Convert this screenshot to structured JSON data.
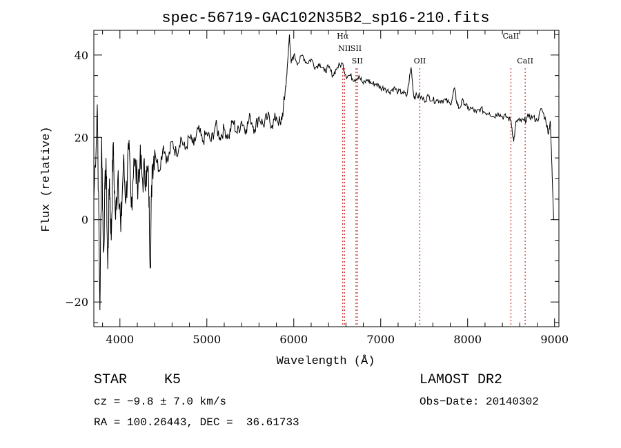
{
  "chart_data": {
    "type": "line",
    "title": "spec-56719-GAC102N35B2_sp16-210.fits",
    "xlabel": "Wavelength (Å)",
    "ylabel": "Flux (relative)",
    "xlim": [
      3700,
      9050
    ],
    "ylim": [
      -26,
      46
    ],
    "xticks": [
      4000,
      5000,
      6000,
      7000,
      8000,
      9000
    ],
    "yticks": [
      -20,
      0,
      20,
      40
    ],
    "grid": false,
    "series": [
      {
        "color": "#000000",
        "points": [
          [
            3700,
            5
          ],
          [
            3740,
            28
          ],
          [
            3770,
            -22
          ],
          [
            3790,
            20
          ],
          [
            3810,
            -8
          ],
          [
            3840,
            15
          ],
          [
            3860,
            -12
          ],
          [
            3880,
            10
          ],
          [
            3900,
            -5
          ],
          [
            3920,
            18
          ],
          [
            3950,
            0
          ],
          [
            3980,
            12
          ],
          [
            4010,
            -3
          ],
          [
            4040,
            14
          ],
          [
            4070,
            5
          ],
          [
            4100,
            17
          ],
          [
            4130,
            3
          ],
          [
            4160,
            15
          ],
          [
            4200,
            9
          ],
          [
            4230,
            14
          ],
          [
            4260,
            10
          ],
          [
            4300,
            12
          ],
          [
            4330,
            9
          ],
          [
            4350,
            -11
          ],
          [
            4370,
            13
          ],
          [
            4400,
            17
          ],
          [
            4450,
            12
          ],
          [
            4500,
            18
          ],
          [
            4550,
            14
          ],
          [
            4600,
            19
          ],
          [
            4650,
            16
          ],
          [
            4700,
            20
          ],
          [
            4750,
            17
          ],
          [
            4800,
            20
          ],
          [
            4850,
            18
          ],
          [
            4900,
            22
          ],
          [
            4950,
            19
          ],
          [
            5000,
            21
          ],
          [
            5050,
            19
          ],
          [
            5100,
            23
          ],
          [
            5150,
            20
          ],
          [
            5200,
            22
          ],
          [
            5250,
            20
          ],
          [
            5300,
            24
          ],
          [
            5350,
            21
          ],
          [
            5400,
            24
          ],
          [
            5450,
            22
          ],
          [
            5500,
            25
          ],
          [
            5550,
            22
          ],
          [
            5600,
            25
          ],
          [
            5650,
            23
          ],
          [
            5700,
            25
          ],
          [
            5750,
            23
          ],
          [
            5800,
            25
          ],
          [
            5850,
            23
          ],
          [
            5880,
            27
          ],
          [
            5900,
            31
          ],
          [
            5920,
            35
          ],
          [
            5950,
            45
          ],
          [
            5970,
            38
          ],
          [
            6000,
            40
          ],
          [
            6050,
            38
          ],
          [
            6100,
            40
          ],
          [
            6150,
            38
          ],
          [
            6200,
            39
          ],
          [
            6250,
            37
          ],
          [
            6300,
            38
          ],
          [
            6350,
            36
          ],
          [
            6400,
            37
          ],
          [
            6450,
            35
          ],
          [
            6500,
            37
          ],
          [
            6560,
            38
          ],
          [
            6600,
            35
          ],
          [
            6650,
            35
          ],
          [
            6700,
            34
          ],
          [
            6750,
            35
          ],
          [
            6800,
            33
          ],
          [
            6850,
            34
          ],
          [
            6900,
            33
          ],
          [
            6950,
            33
          ],
          [
            7000,
            32
          ],
          [
            7050,
            32
          ],
          [
            7100,
            31
          ],
          [
            7150,
            32
          ],
          [
            7200,
            31
          ],
          [
            7250,
            31
          ],
          [
            7300,
            30
          ],
          [
            7350,
            37
          ],
          [
            7380,
            30
          ],
          [
            7400,
            30
          ],
          [
            7450,
            30
          ],
          [
            7500,
            29
          ],
          [
            7550,
            30
          ],
          [
            7600,
            29
          ],
          [
            7650,
            29
          ],
          [
            7700,
            29
          ],
          [
            7750,
            29
          ],
          [
            7800,
            28
          ],
          [
            7850,
            32
          ],
          [
            7870,
            29
          ],
          [
            7900,
            27
          ],
          [
            7950,
            29
          ],
          [
            8000,
            27
          ],
          [
            8050,
            27
          ],
          [
            8100,
            26
          ],
          [
            8150,
            27
          ],
          [
            8200,
            26
          ],
          [
            8250,
            26
          ],
          [
            8300,
            25
          ],
          [
            8350,
            26
          ],
          [
            8400,
            25
          ],
          [
            8450,
            25
          ],
          [
            8500,
            24
          ],
          [
            8530,
            19
          ],
          [
            8560,
            24
          ],
          [
            8600,
            24
          ],
          [
            8650,
            24
          ],
          [
            8700,
            25
          ],
          [
            8750,
            25
          ],
          [
            8800,
            24
          ],
          [
            8850,
            27
          ],
          [
            8900,
            24
          ],
          [
            8930,
            21
          ],
          [
            8950,
            24
          ],
          [
            8970,
            13
          ],
          [
            8990,
            0
          ]
        ]
      }
    ],
    "lines": [
      {
        "x": 6563,
        "label": "Hα",
        "label_y": 44
      },
      {
        "x": 6584,
        "label": "NII",
        "label_y": 41
      },
      {
        "x": 6716,
        "label": "SII",
        "label_y": 41
      },
      {
        "x": 6731,
        "label": "SII",
        "label_y": 38
      },
      {
        "x": 7450,
        "label": "OII",
        "label_y": 38
      },
      {
        "x": 8498,
        "label": "CaII",
        "label_y": 44
      },
      {
        "x": 8662,
        "label": "CaII",
        "label_y": 38
      }
    ],
    "line_color": "#cc3333"
  },
  "info": {
    "class_label": "STAR",
    "subclass": "K5",
    "survey": "LAMOST DR2",
    "cz": "cz = −9.8 ± 7.0 km/s",
    "obs_date": "Obs−Date: 20140302",
    "coords": "RA = 100.26443, DEC =  36.61733"
  }
}
